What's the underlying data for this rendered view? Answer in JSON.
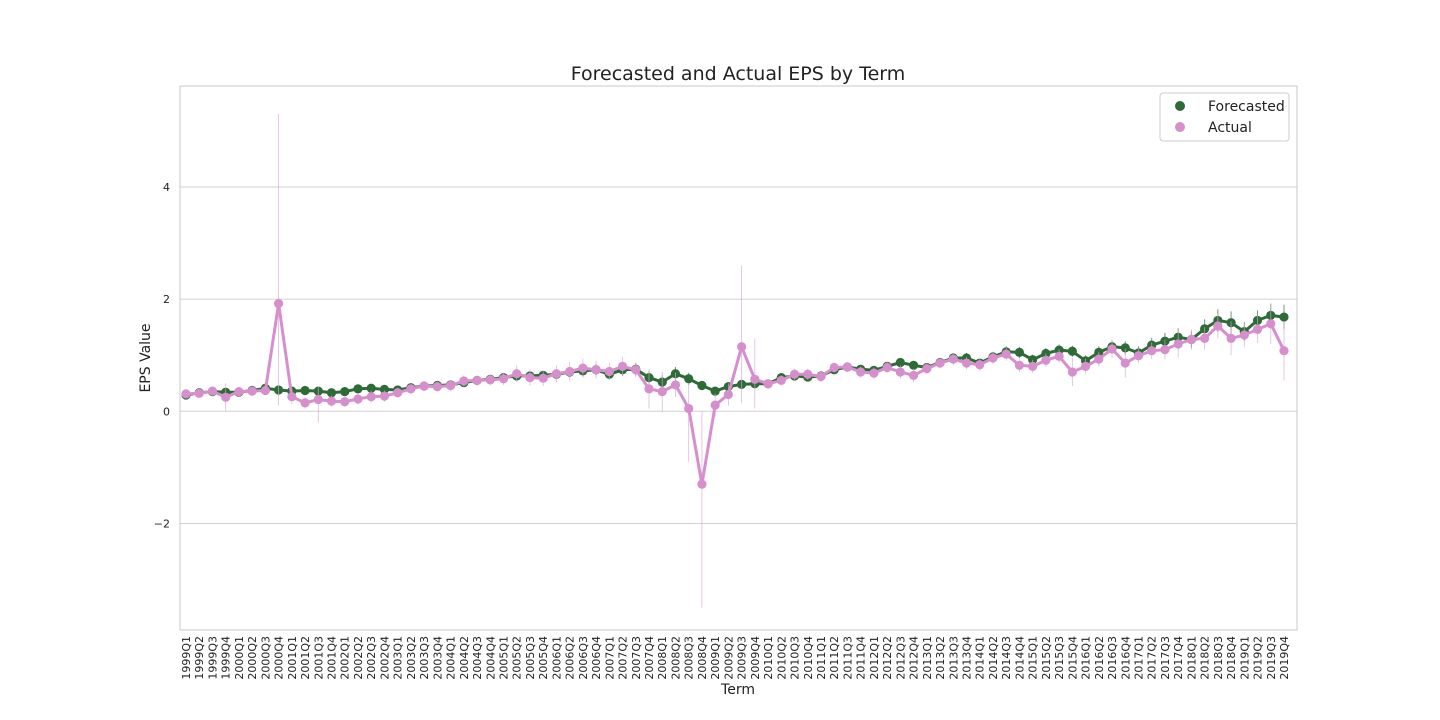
{
  "chart_data": {
    "type": "line",
    "title": "Forecasted and Actual EPS by Term",
    "xlabel": "Term",
    "ylabel": "EPS Value",
    "ylim": [
      -3.9,
      5.8
    ],
    "yticks": [
      -2,
      0,
      2,
      4
    ],
    "ytick_labels": [
      "−2",
      "0",
      "2",
      "4"
    ],
    "grid": "horizontal",
    "legend_position": "top-right",
    "categories": [
      "1999Q1",
      "1999Q2",
      "1999Q3",
      "1999Q4",
      "2000Q1",
      "2000Q2",
      "2000Q3",
      "2000Q4",
      "2001Q1",
      "2001Q2",
      "2001Q3",
      "2001Q4",
      "2002Q1",
      "2002Q2",
      "2002Q3",
      "2002Q4",
      "2003Q1",
      "2003Q2",
      "2003Q3",
      "2003Q4",
      "2004Q1",
      "2004Q2",
      "2004Q3",
      "2004Q4",
      "2005Q1",
      "2005Q2",
      "2005Q3",
      "2005Q4",
      "2006Q1",
      "2006Q2",
      "2006Q3",
      "2006Q4",
      "2007Q1",
      "2007Q2",
      "2007Q3",
      "2007Q4",
      "2008Q1",
      "2008Q2",
      "2008Q3",
      "2008Q4",
      "2009Q1",
      "2009Q2",
      "2009Q3",
      "2009Q4",
      "2010Q1",
      "2010Q2",
      "2010Q3",
      "2010Q4",
      "2011Q1",
      "2011Q2",
      "2011Q3",
      "2011Q4",
      "2012Q1",
      "2012Q2",
      "2012Q3",
      "2012Q4",
      "2013Q1",
      "2013Q2",
      "2013Q3",
      "2013Q4",
      "2014Q1",
      "2014Q2",
      "2014Q3",
      "2014Q4",
      "2015Q1",
      "2015Q2",
      "2015Q3",
      "2015Q4",
      "2016Q1",
      "2016Q2",
      "2016Q3",
      "2016Q4",
      "2017Q1",
      "2017Q2",
      "2017Q3",
      "2017Q4",
      "2018Q1",
      "2018Q2",
      "2018Q3",
      "2018Q4",
      "2019Q1",
      "2019Q2",
      "2019Q3",
      "2019Q4"
    ],
    "series": [
      {
        "name": "Forecasted",
        "color": "#2d6b37",
        "values": [
          0.29,
          0.33,
          0.35,
          0.34,
          0.34,
          0.37,
          0.41,
          0.38,
          0.36,
          0.37,
          0.36,
          0.33,
          0.35,
          0.4,
          0.41,
          0.39,
          0.38,
          0.42,
          0.45,
          0.46,
          0.47,
          0.51,
          0.55,
          0.57,
          0.6,
          0.63,
          0.63,
          0.64,
          0.66,
          0.7,
          0.72,
          0.74,
          0.66,
          0.74,
          0.75,
          0.6,
          0.52,
          0.67,
          0.58,
          0.46,
          0.36,
          0.44,
          0.48,
          0.49,
          0.49,
          0.6,
          0.63,
          0.61,
          0.63,
          0.74,
          0.79,
          0.75,
          0.73,
          0.8,
          0.87,
          0.82,
          0.78,
          0.87,
          0.95,
          0.95,
          0.86,
          0.97,
          1.06,
          1.05,
          0.92,
          1.03,
          1.09,
          1.07,
          0.9,
          1.05,
          1.15,
          1.13,
          1.04,
          1.18,
          1.25,
          1.32,
          1.28,
          1.47,
          1.62,
          1.58,
          1.42,
          1.62,
          1.71,
          1.68
        ],
        "err_low": [
          0.25,
          0.3,
          0.32,
          0.28,
          0.3,
          0.33,
          0.36,
          0.34,
          0.3,
          0.32,
          0.3,
          0.29,
          0.3,
          0.35,
          0.36,
          0.34,
          0.33,
          0.38,
          0.4,
          0.4,
          0.42,
          0.45,
          0.49,
          0.51,
          0.53,
          0.55,
          0.55,
          0.56,
          0.57,
          0.61,
          0.62,
          0.64,
          0.57,
          0.63,
          0.64,
          0.48,
          0.4,
          0.55,
          0.47,
          0.38,
          0.3,
          0.37,
          0.41,
          0.42,
          0.42,
          0.53,
          0.56,
          0.54,
          0.56,
          0.67,
          0.72,
          0.68,
          0.66,
          0.73,
          0.79,
          0.74,
          0.7,
          0.79,
          0.86,
          0.86,
          0.78,
          0.88,
          0.96,
          0.95,
          0.83,
          0.93,
          0.99,
          0.97,
          0.8,
          0.94,
          1.03,
          1.01,
          0.92,
          1.05,
          1.1,
          1.16,
          1.13,
          1.3,
          1.42,
          1.38,
          1.25,
          1.44,
          1.5,
          1.46
        ],
        "err_high": [
          0.33,
          0.36,
          0.38,
          0.4,
          0.38,
          0.41,
          0.46,
          0.42,
          0.42,
          0.42,
          0.42,
          0.37,
          0.4,
          0.45,
          0.46,
          0.44,
          0.43,
          0.46,
          0.5,
          0.52,
          0.52,
          0.57,
          0.61,
          0.63,
          0.67,
          0.71,
          0.71,
          0.72,
          0.75,
          0.79,
          0.82,
          0.84,
          0.75,
          0.85,
          0.86,
          0.72,
          0.64,
          0.79,
          0.69,
          0.54,
          0.42,
          0.51,
          0.55,
          0.56,
          0.56,
          0.67,
          0.7,
          0.68,
          0.7,
          0.81,
          0.86,
          0.82,
          0.8,
          0.87,
          0.95,
          0.9,
          0.86,
          0.95,
          1.04,
          1.04,
          0.94,
          1.06,
          1.16,
          1.15,
          1.01,
          1.13,
          1.19,
          1.17,
          1.0,
          1.16,
          1.27,
          1.25,
          1.16,
          1.31,
          1.4,
          1.48,
          1.43,
          1.64,
          1.82,
          1.78,
          1.59,
          1.8,
          1.92,
          1.9
        ]
      },
      {
        "name": "Actual",
        "color": "#d68fcc",
        "values": [
          0.31,
          0.32,
          0.36,
          0.25,
          0.35,
          0.36,
          0.37,
          1.92,
          0.26,
          0.15,
          0.21,
          0.18,
          0.17,
          0.22,
          0.26,
          0.27,
          0.33,
          0.4,
          0.45,
          0.44,
          0.46,
          0.54,
          0.55,
          0.56,
          0.58,
          0.67,
          0.6,
          0.59,
          0.67,
          0.71,
          0.77,
          0.74,
          0.71,
          0.8,
          0.74,
          0.4,
          0.35,
          0.47,
          0.05,
          -1.3,
          0.11,
          0.3,
          1.15,
          0.57,
          0.49,
          0.55,
          0.66,
          0.66,
          0.62,
          0.78,
          0.79,
          0.7,
          0.68,
          0.78,
          0.7,
          0.64,
          0.76,
          0.86,
          0.93,
          0.86,
          0.83,
          0.95,
          1.02,
          0.82,
          0.8,
          0.91,
          0.98,
          0.7,
          0.8,
          0.93,
          1.11,
          0.86,
          0.99,
          1.08,
          1.1,
          1.2,
          1.28,
          1.3,
          1.52,
          1.3,
          1.36,
          1.46,
          1.56,
          1.08
        ],
        "err_low": [
          0.27,
          0.28,
          0.31,
          0.0,
          0.3,
          0.31,
          0.32,
          0.1,
          0.12,
          0.05,
          -0.2,
          0.08,
          0.08,
          0.12,
          0.15,
          0.17,
          0.24,
          0.31,
          0.36,
          0.35,
          0.36,
          0.44,
          0.45,
          0.46,
          0.47,
          0.52,
          0.45,
          0.45,
          0.52,
          0.55,
          0.6,
          0.58,
          0.56,
          0.63,
          0.6,
          0.05,
          0.0,
          0.25,
          -0.9,
          -3.5,
          -0.1,
          0.1,
          0.15,
          0.05,
          0.42,
          0.46,
          0.56,
          0.56,
          0.52,
          0.69,
          0.7,
          0.6,
          0.58,
          0.68,
          0.58,
          0.52,
          0.66,
          0.76,
          0.82,
          0.75,
          0.72,
          0.84,
          0.9,
          0.7,
          0.68,
          0.79,
          0.86,
          0.45,
          0.66,
          0.8,
          0.95,
          0.6,
          0.86,
          0.93,
          0.92,
          0.96,
          1.1,
          1.1,
          1.3,
          1.0,
          1.15,
          1.22,
          1.2,
          0.55
        ],
        "err_high": [
          0.35,
          0.36,
          0.41,
          0.5,
          0.4,
          0.41,
          0.42,
          5.3,
          0.4,
          0.25,
          0.45,
          0.28,
          0.26,
          0.32,
          0.37,
          0.37,
          0.42,
          0.49,
          0.54,
          0.53,
          0.56,
          0.64,
          0.65,
          0.66,
          0.69,
          0.82,
          0.75,
          0.73,
          0.82,
          0.87,
          0.94,
          0.9,
          0.86,
          0.97,
          0.88,
          0.75,
          0.7,
          0.69,
          0.5,
          0.0,
          0.32,
          0.5,
          2.6,
          1.3,
          0.56,
          0.64,
          0.76,
          0.76,
          0.72,
          0.87,
          0.88,
          0.8,
          0.78,
          0.88,
          0.82,
          0.76,
          0.86,
          0.96,
          1.04,
          0.97,
          0.94,
          1.06,
          1.14,
          0.94,
          0.92,
          1.03,
          1.1,
          0.95,
          0.94,
          1.06,
          1.27,
          1.12,
          1.12,
          1.23,
          1.28,
          1.44,
          1.46,
          1.5,
          1.74,
          1.6,
          1.57,
          1.7,
          1.92,
          1.61
        ]
      }
    ]
  }
}
